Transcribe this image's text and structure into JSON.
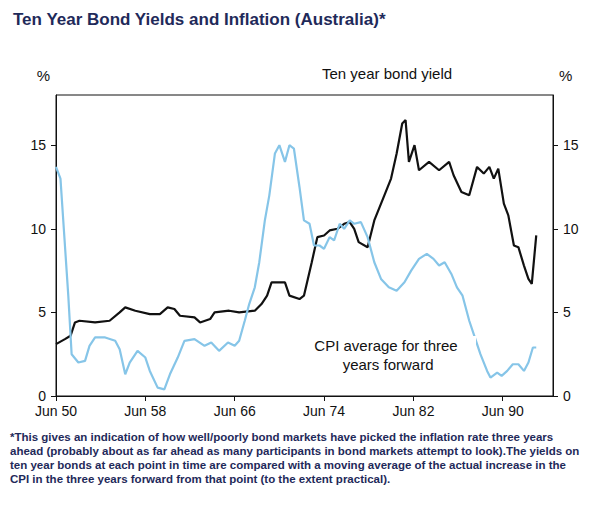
{
  "chart_data": {
    "type": "line",
    "title": "Ten Year Bond Yields and Inflation (Australia)*",
    "note": "*This gives an indication of how well/poorly bond markets have picked the inflation rate three years ahead (probably about as far ahead as many participants in bond markets attempt to look).The yields on ten year bonds at each point in time are compared with a moving average of the actual increase in the CPI in the three years forward from that point (to the extent practical).",
    "ylabel": "%",
    "y2label": "%",
    "xlim": [
      1950.5,
      1995
    ],
    "xticks": [
      {
        "value": 1950.5,
        "label": "Jun 50"
      },
      {
        "value": 1958.5,
        "label": "Jun 58"
      },
      {
        "value": 1966.5,
        "label": "Jun 66"
      },
      {
        "value": 1974.5,
        "label": "Jun 74"
      },
      {
        "value": 1982.5,
        "label": "Jun 82"
      },
      {
        "value": 1990.5,
        "label": "Jun 90"
      }
    ],
    "ylim": [
      0,
      18
    ],
    "yticks": [
      0,
      5,
      10,
      15
    ],
    "y2lim": [
      0,
      18
    ],
    "y2ticks": [
      0,
      5,
      10,
      15
    ],
    "grid": false,
    "series": [
      {
        "name": "Ten year bond yield",
        "color": "#111111",
        "x": [
          1950.5,
          1951.3,
          1951.8,
          1952.2,
          1952.6,
          1954.0,
          1955.3,
          1956.2,
          1956.7,
          1957.6,
          1958.9,
          1959.8,
          1960.5,
          1961.1,
          1961.6,
          1962.9,
          1963.4,
          1964.3,
          1964.7,
          1966.0,
          1966.9,
          1968.3,
          1968.9,
          1969.4,
          1969.8,
          1971.0,
          1971.4,
          1972.3,
          1972.7,
          1973.4,
          1973.9,
          1974.5,
          1975.0,
          1975.7,
          1976.3,
          1976.8,
          1977.2,
          1977.6,
          1978.4,
          1979.0,
          1979.9,
          1980.5,
          1981.0,
          1981.5,
          1981.8,
          1982.1,
          1982.6,
          1983.0,
          1983.9,
          1984.8,
          1985.7,
          1986.1,
          1986.8,
          1987.5,
          1988.2,
          1988.8,
          1989.3,
          1989.7,
          1990.1,
          1990.6,
          1991.0,
          1991.5,
          1991.9,
          1992.4,
          1992.8,
          1993.1,
          1993.5
        ],
        "values": [
          3.1,
          3.4,
          3.6,
          4.4,
          4.5,
          4.4,
          4.5,
          5.0,
          5.3,
          5.1,
          4.9,
          4.9,
          5.3,
          5.2,
          4.8,
          4.7,
          4.4,
          4.6,
          5.0,
          5.1,
          5.0,
          5.1,
          5.5,
          6.0,
          6.8,
          6.8,
          6.0,
          5.8,
          6.0,
          8.0,
          9.5,
          9.6,
          9.9,
          10.0,
          10.3,
          10.4,
          10.0,
          9.2,
          8.9,
          10.5,
          12.0,
          13.0,
          14.5,
          16.3,
          16.5,
          14.0,
          15.0,
          13.5,
          14.0,
          13.5,
          14.0,
          13.2,
          12.2,
          12.0,
          13.7,
          13.3,
          13.7,
          13.0,
          13.6,
          11.5,
          10.8,
          9.0,
          8.9,
          7.8,
          7.0,
          6.7,
          9.6
        ]
      },
      {
        "name": "CPI average for three years forward",
        "color": "#86c5e8",
        "x": [
          1950.5,
          1950.9,
          1951.2,
          1951.6,
          1951.9,
          1952.5,
          1953.1,
          1953.5,
          1954.0,
          1954.9,
          1955.8,
          1956.2,
          1956.7,
          1957.1,
          1957.8,
          1958.5,
          1958.9,
          1959.6,
          1960.2,
          1960.7,
          1961.4,
          1962.0,
          1962.9,
          1963.8,
          1964.4,
          1965.1,
          1965.9,
          1966.5,
          1966.9,
          1967.4,
          1967.8,
          1968.3,
          1968.7,
          1969.2,
          1969.6,
          1970.1,
          1970.5,
          1971.0,
          1971.4,
          1971.8,
          1972.3,
          1972.7,
          1973.2,
          1973.6,
          1974.1,
          1974.5,
          1975.0,
          1975.4,
          1975.9,
          1976.3,
          1976.8,
          1977.2,
          1977.8,
          1978.4,
          1979.0,
          1979.6,
          1980.3,
          1981.0,
          1981.7,
          1982.3,
          1983.0,
          1983.7,
          1984.3,
          1984.8,
          1985.3,
          1985.9,
          1986.4,
          1986.9,
          1987.5,
          1988.0,
          1988.5,
          1989.1,
          1989.4,
          1990.0,
          1990.4,
          1990.9,
          1991.4,
          1991.9,
          1992.4,
          1992.8,
          1993.2,
          1993.5
        ],
        "values": [
          13.7,
          13.0,
          10.0,
          6.0,
          2.5,
          2.0,
          2.1,
          3.0,
          3.5,
          3.5,
          3.3,
          2.8,
          1.3,
          2.0,
          2.7,
          2.3,
          1.5,
          0.5,
          0.4,
          1.3,
          2.3,
          3.3,
          3.4,
          3.0,
          3.2,
          2.7,
          3.2,
          3.0,
          3.3,
          4.5,
          5.5,
          6.5,
          8.0,
          10.5,
          12.0,
          14.5,
          15.0,
          14.0,
          15.0,
          14.8,
          12.5,
          10.5,
          10.3,
          9.0,
          9.0,
          8.8,
          9.5,
          9.3,
          10.3,
          10.0,
          10.5,
          10.3,
          10.4,
          9.5,
          8.0,
          7.0,
          6.5,
          6.3,
          6.8,
          7.5,
          8.2,
          8.5,
          8.2,
          7.8,
          8.0,
          7.3,
          6.5,
          6.0,
          4.5,
          3.5,
          2.5,
          1.5,
          1.1,
          1.4,
          1.2,
          1.5,
          1.9,
          1.9,
          1.5,
          2.0,
          2.9,
          2.9
        ]
      }
    ]
  }
}
